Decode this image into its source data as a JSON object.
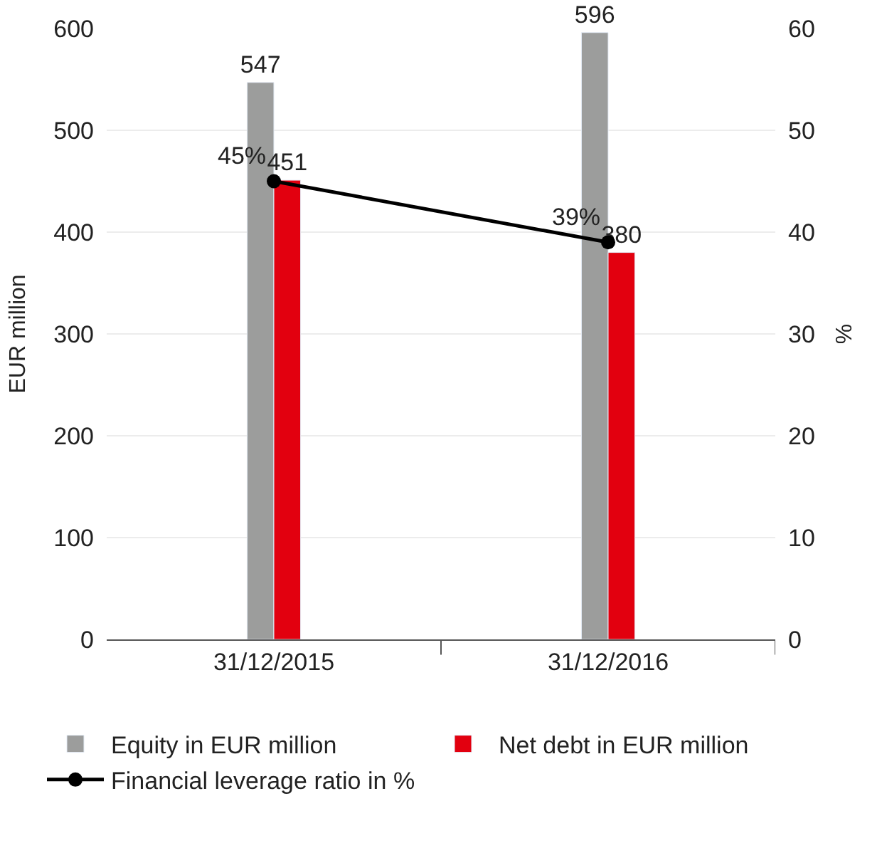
{
  "chart_data": {
    "type": "bar",
    "categories": [
      "31/12/2015",
      "31/12/2016"
    ],
    "series": [
      {
        "name": "Equity in EUR million",
        "color": "#9c9d9c",
        "values": [
          547,
          596
        ]
      },
      {
        "name": "Net debt in EUR million",
        "color": "#e2000f",
        "values": [
          451,
          380
        ]
      },
      {
        "name": "Financial leverage ratio in %",
        "type": "line",
        "axis": "y2",
        "color": "#000000",
        "values": [
          45,
          39
        ],
        "value_labels": [
          "45%",
          "39%"
        ]
      }
    ],
    "ylabel": "EUR million",
    "y2label": "%",
    "ylim": [
      0,
      600
    ],
    "yticks": [
      0,
      100,
      200,
      300,
      400,
      500,
      600
    ],
    "y2lim": [
      0,
      60
    ],
    "y2ticks": [
      0,
      10,
      20,
      30,
      40,
      50,
      60
    ],
    "data_labels": true,
    "grid": "y",
    "legend": "bottom",
    "marker": "circle",
    "line_style": "solid"
  }
}
